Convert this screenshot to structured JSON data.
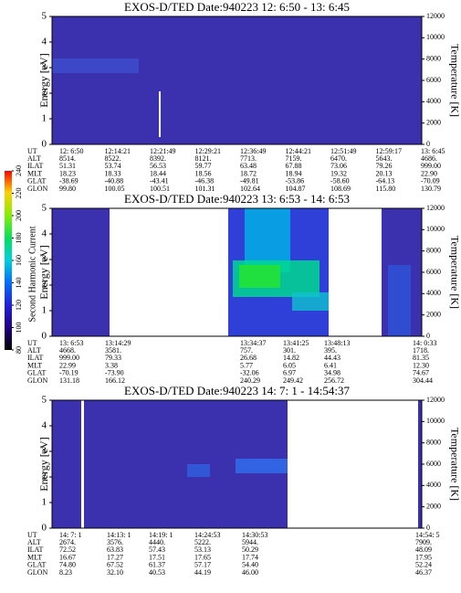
{
  "chart_data": [
    {
      "type": "heatmap",
      "title": "EXOS-D/TED   Date:940223   12: 6:50 - 13: 6:45",
      "ylabel": "Energy [eV]",
      "ylim": [
        0,
        5
      ],
      "yticks": [
        0,
        1,
        2,
        3,
        4,
        5
      ],
      "y2label": "Temperature [K]",
      "y2lim": [
        0,
        12000
      ],
      "y2ticks": [
        0,
        2000,
        4000,
        6000,
        8000,
        10000,
        12000
      ],
      "ephemeris": {
        "labels": [
          "UT",
          "ALT",
          "ILAT",
          "MLT",
          "GLAT",
          "GLON"
        ],
        "columns": [
          [
            "12: 6:50",
            "8514.",
            "51.31",
            "18.23",
            "-38.69",
            "99.80"
          ],
          [
            "12:14:21",
            "8522.",
            "53.74",
            "18.33",
            "-40.88",
            "100.05"
          ],
          [
            "12:21:49",
            "8392.",
            "56.53",
            "18.44",
            "-43.41",
            "100.51"
          ],
          [
            "12:29:21",
            "8121.",
            "59.77",
            "18.56",
            "-46.38",
            "101.31"
          ],
          [
            "12:36:49",
            "7713.",
            "63.48",
            "18.72",
            "-49.81",
            "102.64"
          ],
          [
            "12:44:21",
            "7159.",
            "67.88",
            "18.94",
            "-53.86",
            "104.87"
          ],
          [
            "12:51:49",
            "6470.",
            "73.06",
            "19.32",
            "-58.60",
            "108.69"
          ],
          [
            "12:59:17",
            "5643.",
            "79.26",
            "20.13",
            "-64.13",
            "115.80"
          ],
          [
            "13: 6:45",
            "4686.",
            "999.00",
            "22.90",
            "-70.09",
            "130.79"
          ]
        ]
      }
    },
    {
      "type": "heatmap",
      "title": "EXOS-D/TED   Date:940223   13: 6:53 - 14: 6:53",
      "ylabel": "Energy [eV]",
      "ylim": [
        0,
        5
      ],
      "yticks": [
        0,
        1,
        2,
        3,
        4,
        5
      ],
      "y2label": "Temperature [K]",
      "y2lim": [
        0,
        12000
      ],
      "y2ticks": [
        0,
        2000,
        4000,
        6000,
        8000,
        10000,
        12000
      ],
      "colorbar": {
        "label": "Second Harmonic Current",
        "lim": [
          80,
          240
        ],
        "ticks": [
          80,
          100,
          120,
          140,
          160,
          180,
          200,
          220,
          240
        ]
      },
      "ephemeris": {
        "labels": [
          "UT",
          "ALT",
          "ILAT",
          "MLT",
          "GLAT",
          "GLON"
        ],
        "columns": [
          [
            "13: 6:53",
            "4668.",
            "999.00",
            "22.99",
            "-70.19",
            "131.18"
          ],
          [
            "13:14:29",
            "3581.",
            "79.33",
            "3.38",
            "-73.90",
            "166.12"
          ],
          [
            "13:34:37",
            "757.",
            "26.68",
            "5.77",
            "-32.06",
            "240.29"
          ],
          [
            "13:41:25",
            "301.",
            "14.82",
            "6.05",
            "6.97",
            "249.42"
          ],
          [
            "13:48:13",
            "395.",
            "44.43",
            "6.41",
            "34.98",
            "256.72"
          ],
          [
            "14: 0:33",
            "1718.",
            "81.35",
            "12.30",
            "74.67",
            "304.44"
          ]
        ]
      }
    },
    {
      "type": "heatmap",
      "title": "EXOS-D/TED   Date:940223   14: 7: 1 - 14:54:37",
      "ylabel": "Energy [eV]",
      "ylim": [
        0,
        5
      ],
      "yticks": [
        0,
        1,
        2,
        3,
        4,
        5
      ],
      "y2label": "Temperature [K]",
      "y2lim": [
        0,
        12000
      ],
      "y2ticks": [
        0,
        2000,
        4000,
        6000,
        8000,
        10000,
        12000
      ],
      "ephemeris": {
        "labels": [
          "UT",
          "ALT",
          "ILAT",
          "MLT",
          "GLAT",
          "GLON"
        ],
        "columns": [
          [
            "14: 7: 1",
            "2674.",
            "72.52",
            "16.67",
            "74.80",
            "8.23"
          ],
          [
            "14:13: 1",
            "3576.",
            "63.83",
            "17.27",
            "67.52",
            "32.10"
          ],
          [
            "14:19: 1",
            "4440.",
            "57.43",
            "17.51",
            "61.37",
            "40.53"
          ],
          [
            "14:24:53",
            "5222.",
            "53.13",
            "17.65",
            "57.17",
            "44.19"
          ],
          [
            "14:30:53",
            "5944.",
            "50.29",
            "17.74",
            "54.40",
            "46.00"
          ],
          [
            "14:54: 5",
            "7909.",
            "48.09",
            "17.95",
            "52.24",
            "46.37"
          ]
        ]
      }
    }
  ]
}
